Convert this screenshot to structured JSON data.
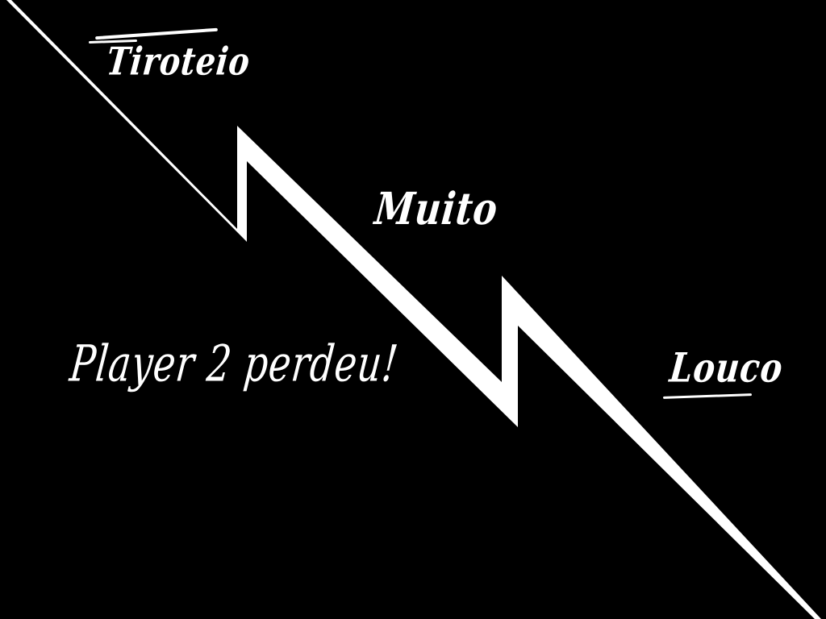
{
  "title": {
    "word1": "Tiroteio",
    "word2": "Muito",
    "word3": "Louco"
  },
  "game_over": {
    "message": "Player 2 perdeu!"
  },
  "colors": {
    "background": "#000000",
    "foreground": "#ffffff"
  }
}
